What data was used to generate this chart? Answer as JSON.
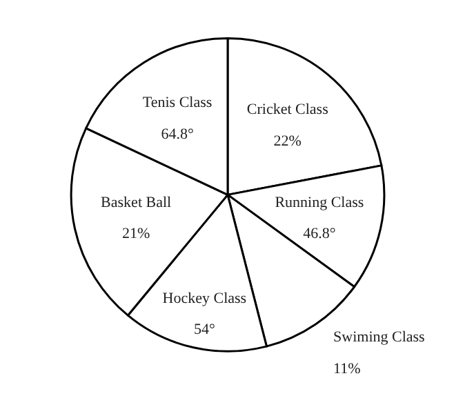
{
  "chart_data": {
    "type": "pie",
    "categories": [
      "Cricket Class",
      "Running Class",
      "Swiming Class",
      "Hockey Class",
      "Basket Ball",
      "Tenis Class"
    ],
    "values": [
      22,
      13,
      11,
      15,
      21,
      18
    ],
    "annotations": [
      {
        "text": "22%",
        "x": "Cricket Class"
      },
      {
        "text": "46.8°",
        "x": "Running Class"
      },
      {
        "text": "11%",
        "x": "Swiming Class"
      },
      {
        "text": "54°",
        "x": "Hockey Class"
      },
      {
        "text": "21%",
        "x": "Basket Ball"
      },
      {
        "text": "64.8°",
        "x": "Tenis Class"
      }
    ],
    "colors": [
      "#ffffff",
      "#ffffff",
      "#ffffff",
      "#ffffff",
      "#ffffff",
      "#ffffff"
    ]
  }
}
